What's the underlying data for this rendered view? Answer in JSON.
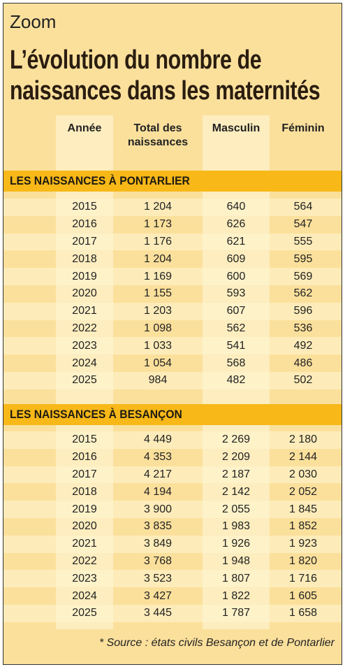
{
  "header": {
    "kicker": "Zoom",
    "title": [
      "L’évolution du nombre de",
      "naissances dans les maternités"
    ]
  },
  "table": {
    "columns": [
      "Année",
      "Total des naissances",
      "Masculin",
      "Féminin"
    ],
    "sections": [
      {
        "title": "LES NAISSANCES À PONTARLIER",
        "rows": [
          [
            "2015",
            "1 204",
            "640",
            "564"
          ],
          [
            "2016",
            "1 173",
            "626",
            "547"
          ],
          [
            "2017",
            "1 176",
            "621",
            "555"
          ],
          [
            "2018",
            "1 204",
            "609",
            "595"
          ],
          [
            "2019",
            "1 169",
            "600",
            "569"
          ],
          [
            "2020",
            "1 155",
            "593",
            "562"
          ],
          [
            "2021",
            "1 203",
            "607",
            "596"
          ],
          [
            "2022",
            "1 098",
            "562",
            "536"
          ],
          [
            "2023",
            "1 033",
            "541",
            "492"
          ],
          [
            "2024",
            "1 054",
            "568",
            "486"
          ],
          [
            "2025",
            "984",
            "482",
            "502"
          ]
        ]
      },
      {
        "title": "LES NAISSANCES À BESANÇON",
        "rows": [
          [
            "2015",
            "4 449",
            "2 269",
            "2 180"
          ],
          [
            "2016",
            "4 353",
            "2 209",
            "2 144"
          ],
          [
            "2017",
            "4 217",
            "2 187",
            "2 030"
          ],
          [
            "2018",
            "4 194",
            "2 142",
            "2 052"
          ],
          [
            "2019",
            "3 900",
            "2 055",
            "1 845"
          ],
          [
            "2020",
            "3 835",
            "1 983",
            "1 852"
          ],
          [
            "2021",
            "3 849",
            "1 926",
            "1 923"
          ],
          [
            "2022",
            "3 768",
            "1 948",
            "1 820"
          ],
          [
            "2023",
            "3 523",
            "1 807",
            "1 716"
          ],
          [
            "2024",
            "3 427",
            "1 822",
            "1 605"
          ],
          [
            "2025",
            "3 445",
            "1 787",
            "1 658"
          ]
        ]
      }
    ]
  },
  "footer": {
    "source": "* Source : états civils Besançon et de Pontarlier"
  }
}
